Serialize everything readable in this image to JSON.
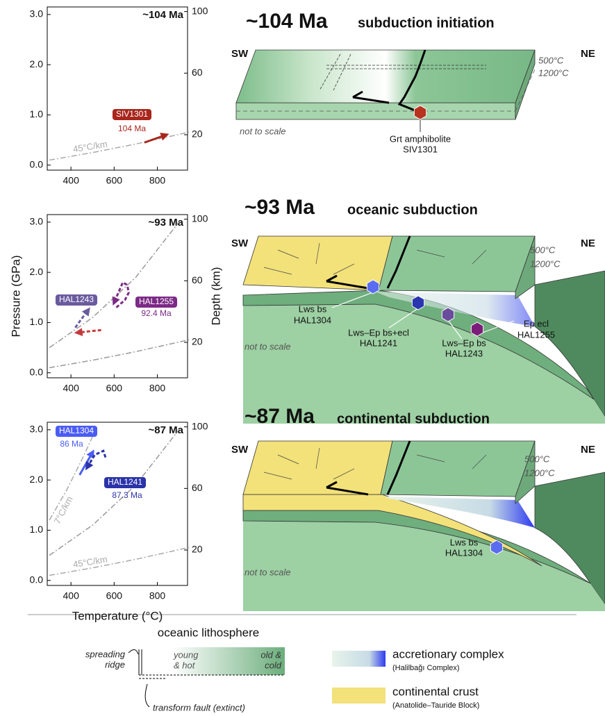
{
  "chart_data": [
    {
      "type": "line",
      "title": "~104 Ma",
      "xlim": [
        290,
        940
      ],
      "ylim": [
        -0.1,
        3.15
      ],
      "y2lim": [
        -3,
        103
      ],
      "xticks": [
        400,
        600,
        800
      ],
      "yticks": [
        {
          "value": 0,
          "label": "0.0"
        },
        {
          "value": 1,
          "label": "1.0"
        },
        {
          "value": 2,
          "label": "2.0"
        },
        {
          "value": 3,
          "label": "3.0"
        }
      ],
      "y2ticks": [
        20,
        60,
        100
      ],
      "series": [
        {
          "name": "45°C/km",
          "color": "#aaaaaa",
          "style": "dashdot",
          "x": [
            300,
            500,
            700,
            950
          ],
          "values": [
            0.1,
            0.25,
            0.42,
            0.66
          ]
        },
        {
          "name": "SIV1301",
          "age": "104 Ma",
          "color": "#a8261c",
          "style": "solid",
          "arrow": true,
          "x": [
            740,
            840
          ],
          "values": [
            0.45,
            0.6
          ]
        }
      ]
    },
    {
      "type": "line",
      "title": "~93 Ma",
      "ylabel": "Pressure (GPa)",
      "y2label": "Depth (km)",
      "xlim": [
        290,
        940
      ],
      "ylim": [
        -0.1,
        3.15
      ],
      "y2lim": [
        -3,
        103
      ],
      "xticks": [
        400,
        600,
        800
      ],
      "yticks": [
        {
          "value": 0,
          "label": "0.0"
        },
        {
          "value": 1,
          "label": "1.0"
        },
        {
          "value": 2,
          "label": "2.0"
        },
        {
          "value": 3,
          "label": "3.0"
        }
      ],
      "y2ticks": [
        20,
        60,
        100
      ],
      "series": [
        {
          "color": "#999999",
          "style": "dashdot",
          "x": [
            300,
            500,
            700,
            900
          ],
          "values": [
            0.5,
            1.1,
            1.9,
            3.0
          ]
        },
        {
          "color": "#999999",
          "style": "dashdot",
          "x": [
            300,
            500,
            700,
            950
          ],
          "values": [
            0.1,
            0.25,
            0.42,
            0.66
          ]
        },
        {
          "name": "HAL1243",
          "color": "#6b5a9e",
          "style": "dashed",
          "arrow": true,
          "x": [
            420,
            445,
            480
          ],
          "values": [
            0.9,
            1.05,
            1.25
          ]
        },
        {
          "color": "#c43a3a",
          "style": "dashed",
          "arrow": true,
          "x": [
            540,
            430
          ],
          "values": [
            0.85,
            0.8
          ]
        },
        {
          "name": "HAL1255",
          "age": "92.4 Ma",
          "color": "#7c2a86",
          "style": "dashed",
          "arrow": true,
          "x": [
            610,
            650,
            668,
            660,
            640,
            600
          ],
          "values": [
            1.3,
            1.45,
            1.6,
            1.75,
            1.8,
            1.4
          ]
        }
      ]
    },
    {
      "type": "line",
      "title": "~87 Ma",
      "xlabel": "Temperature (°C)",
      "xlim": [
        290,
        940
      ],
      "ylim": [
        -0.1,
        3.15
      ],
      "y2lim": [
        -3,
        103
      ],
      "xticks": [
        400,
        600,
        800
      ],
      "yticks": [
        {
          "value": 0,
          "label": "0.0"
        },
        {
          "value": 1,
          "label": "1.0"
        },
        {
          "value": 2,
          "label": "2.0"
        },
        {
          "value": 3,
          "label": "3.0"
        }
      ],
      "y2ticks": [
        20,
        60,
        100
      ],
      "series": [
        {
          "name": "7°C/km",
          "color": "#aaaaaa",
          "style": "dashdot",
          "x": [
            300,
            380,
            450,
            520
          ],
          "values": [
            1.2,
            1.8,
            2.4,
            3.05
          ]
        },
        {
          "color": "#999999",
          "style": "dashdot",
          "x": [
            300,
            500,
            700,
            900
          ],
          "values": [
            0.5,
            1.1,
            1.9,
            3.0
          ]
        },
        {
          "name": "45°C/km",
          "color": "#aaaaaa",
          "style": "dashdot",
          "x": [
            300,
            500,
            700,
            950
          ],
          "values": [
            0.1,
            0.25,
            0.42,
            0.66
          ]
        },
        {
          "name": "HAL1304",
          "age": "86 Ma",
          "color": "#4b5cf5",
          "style": "solid",
          "arrow": true,
          "x": [
            440,
            500
          ],
          "values": [
            2.1,
            2.55
          ]
        },
        {
          "name": "HAL1241",
          "age": "87.3 Ma",
          "color": "#2b33a8",
          "style": "dashed",
          "arrow": true,
          "x": [
            560,
            550,
            510,
            475
          ],
          "values": [
            2.45,
            2.58,
            2.5,
            2.25
          ]
        }
      ]
    }
  ],
  "sections": [
    {
      "age": "~104 Ma",
      "title": "subduction initiation",
      "sw": "SW",
      "ne": "NE",
      "temp_top": "500°C",
      "temp_bottom": "1200°C",
      "scale_note": "not to scale",
      "samples": [
        {
          "lines": [
            "Grt amphibolite",
            "SIV1301"
          ]
        }
      ]
    },
    {
      "age": "~93 Ma",
      "title": "oceanic subduction",
      "sw": "SW",
      "ne": "NE",
      "temp_top": "500°C",
      "temp_bottom": "1200°C",
      "scale_note": "not to scale",
      "samples": [
        {
          "lines": [
            "Lws bs",
            "HAL1304"
          ]
        },
        {
          "lines": [
            "Lws–Ep bs+ecl",
            "HAL1241"
          ]
        },
        {
          "lines": [
            "Lws–Ep bs",
            "HAL1243"
          ]
        },
        {
          "lines": [
            "Ep ecl",
            "HAL1255"
          ]
        }
      ]
    },
    {
      "age": "~87 Ma",
      "title": "continental subduction",
      "sw": "SW",
      "ne": "NE",
      "temp_top": "500°C",
      "temp_bottom": "1200°C",
      "scale_note": "not to scale",
      "samples": [
        {
          "lines": [
            "Lws bs",
            "HAL1304"
          ]
        }
      ]
    }
  ],
  "legend": {
    "oceanic": {
      "title": "oceanic lithosphere",
      "ridge": [
        "spreading",
        "ridge"
      ],
      "young": [
        "young",
        "& hot"
      ],
      "old": [
        "old &",
        "cold"
      ],
      "fault": "transform fault (extinct)"
    },
    "accretionary": {
      "label": "accretionary complex",
      "sub": "(Halilbağı Complex)"
    },
    "continental": {
      "label": "continental crust",
      "sub": "(Anatolide–Tauride Block)"
    }
  }
}
